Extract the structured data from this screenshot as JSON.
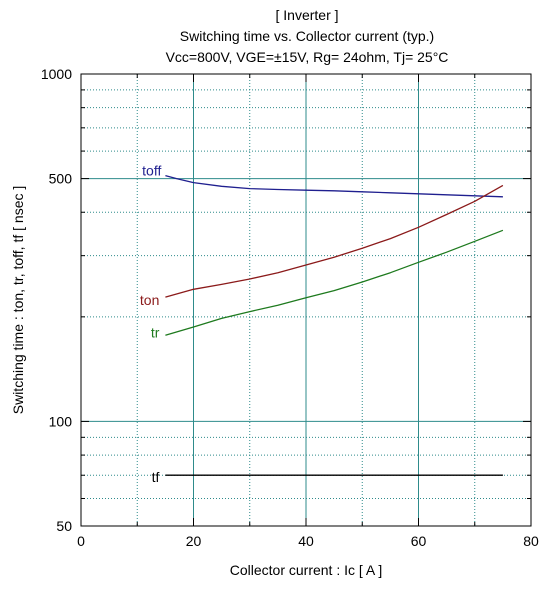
{
  "chart_data": {
    "type": "line",
    "title_lines": [
      "[ Inverter ]",
      "Switching time  vs.  Collector current  (typ.)",
      "Vcc=800V, VGE=±15V, Rg= 24ohm, Tj= 25°C"
    ],
    "xlabel": "Collector current  :  Ic  [ A ]",
    "ylabel": "Switching time  :  ton, tr, toff, tf  [ nsec ]",
    "x_scale": "linear",
    "y_scale": "log",
    "xlim": [
      0,
      80
    ],
    "ylim": [
      50,
      1000
    ],
    "x_ticks": [
      0,
      20,
      40,
      60,
      80
    ],
    "y_ticks": [
      50,
      100,
      500,
      1000
    ],
    "grid": true,
    "colors": {
      "toff": "#1f1f8f",
      "ton": "#8b1a1a",
      "tr": "#1e7a1e",
      "tf": "#000000",
      "grid": "#2e8b8b"
    },
    "series": [
      {
        "name": "toff",
        "x": [
          15,
          17,
          20,
          25,
          30,
          35,
          40,
          45,
          50,
          55,
          60,
          65,
          70,
          75
        ],
        "y": [
          510,
          500,
          487,
          475,
          468,
          465,
          463,
          461,
          458,
          455,
          452,
          449,
          446,
          443
        ]
      },
      {
        "name": "ton",
        "x": [
          15,
          20,
          25,
          30,
          35,
          40,
          45,
          50,
          55,
          60,
          65,
          70,
          75
        ],
        "y": [
          228,
          240,
          248,
          257,
          268,
          282,
          297,
          315,
          336,
          362,
          394,
          430,
          478
        ]
      },
      {
        "name": "tr",
        "x": [
          15,
          20,
          25,
          30,
          35,
          40,
          45,
          50,
          55,
          60,
          65,
          70,
          75
        ],
        "y": [
          177,
          187,
          198,
          207,
          216,
          227,
          238,
          252,
          268,
          287,
          307,
          330,
          355
        ]
      },
      {
        "name": "tf",
        "x": [
          15,
          75
        ],
        "y": [
          70,
          70
        ]
      }
    ]
  }
}
